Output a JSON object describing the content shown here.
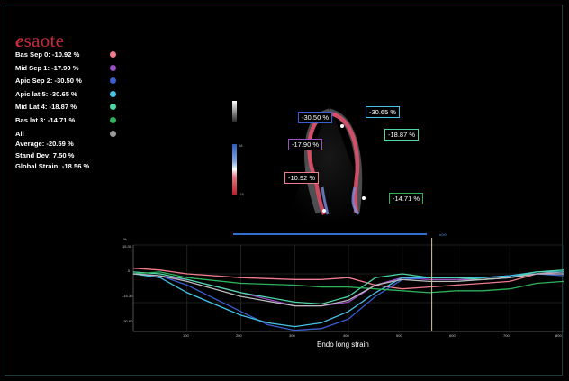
{
  "logo": {
    "e": "e",
    "rest": "saote"
  },
  "legend": [
    {
      "label": "Bas Sep 0: -10.92 %",
      "color": "#f07b8c"
    },
    {
      "label": "Mid Sep 1: -17.90 %",
      "color": "#9b4fc7"
    },
    {
      "label": "Apic Sep 2: -30.50 %",
      "color": "#3a5fd0"
    },
    {
      "label": "Apic lat 5: -30.65 %",
      "color": "#46c2e8"
    },
    {
      "label": "Mid Lat 4: -18.87 %",
      "color": "#4cd6a8"
    },
    {
      "label": "Bas lat 3: -14.71 %",
      "color": "#2db35a"
    },
    {
      "label": "All",
      "color": "#9a9a9a"
    }
  ],
  "stats": {
    "average": "Average: -20.59 %",
    "std": "Stand Dev: 7.50 %",
    "global": "Global Strain: -18.56 %"
  },
  "tags": {
    "apic_sep": "-30.50 %",
    "apic_lat": "-30.65 %",
    "mid_sep": "-17.90 %",
    "mid_lat": "-18.87 %",
    "bas_sep": "-10.92 %",
    "bas_lat": "-14.71 %"
  },
  "colorbar": {
    "top": "18",
    "bottom": "-18"
  },
  "plot": {
    "unit": "%",
    "xlabel": "Endo long strain",
    "yticks": [
      "15.30",
      "0",
      "-15.30",
      "-30.60"
    ],
    "xticks": [
      "100",
      "200",
      "300",
      "400",
      "500",
      "600",
      "700",
      "800"
    ],
    "corner": "n0/0"
  },
  "chart_data": {
    "type": "line",
    "xlabel": "Endo long strain",
    "ylabel": "%",
    "ylim": [
      -30.6,
      15.3
    ],
    "xlim": [
      0,
      800
    ],
    "series": [
      {
        "name": "Bas Sep 0",
        "color": "#f07b8c",
        "x": [
          0,
          50,
          100,
          200,
          300,
          350,
          400,
          450,
          500,
          550,
          600,
          650,
          700,
          750,
          800
        ],
        "y": [
          3,
          2,
          0,
          -2,
          -3,
          -3,
          -2,
          -6,
          -8,
          -7,
          -6,
          -5,
          -4,
          0,
          1
        ]
      },
      {
        "name": "Mid Sep 1",
        "color": "#9b4fc7",
        "x": [
          0,
          50,
          100,
          200,
          300,
          350,
          400,
          450,
          500,
          550,
          600,
          650,
          700,
          750,
          800
        ],
        "y": [
          0,
          -1,
          -3,
          -10,
          -17,
          -17,
          -15,
          -6,
          -2,
          -3,
          -3,
          -3,
          -2,
          0,
          0
        ]
      },
      {
        "name": "Apic Sep 2",
        "color": "#3a5fd0",
        "x": [
          0,
          50,
          100,
          200,
          250,
          300,
          350,
          400,
          450,
          500,
          550,
          600,
          650,
          700,
          750,
          800
        ],
        "y": [
          0,
          -1,
          -6,
          -20,
          -27,
          -30,
          -29,
          -24,
          -12,
          -3,
          -2,
          -2,
          -2,
          -1,
          0,
          -1
        ]
      },
      {
        "name": "Apic lat 5",
        "color": "#46c2e8",
        "x": [
          0,
          50,
          100,
          200,
          250,
          300,
          350,
          400,
          450,
          500,
          550,
          600,
          650,
          700,
          750,
          800
        ],
        "y": [
          0,
          -2,
          -10,
          -22,
          -26,
          -28,
          -26,
          -20,
          -10,
          -2,
          -2,
          -2,
          -2,
          -1,
          1,
          1
        ]
      },
      {
        "name": "Mid Lat 4",
        "color": "#4cd6a8",
        "x": [
          0,
          50,
          100,
          200,
          300,
          350,
          400,
          450,
          500,
          550,
          600,
          650,
          700,
          750,
          800
        ],
        "y": [
          1,
          0,
          -3,
          -10,
          -15,
          -16,
          -12,
          -2,
          0,
          -2,
          -2,
          -3,
          -2,
          1,
          2
        ]
      },
      {
        "name": "Bas lat 3",
        "color": "#2db35a",
        "x": [
          0,
          50,
          100,
          200,
          300,
          350,
          400,
          450,
          500,
          550,
          600,
          650,
          700,
          750,
          800
        ],
        "y": [
          0,
          1,
          -2,
          -5,
          -6,
          -7,
          -7,
          -8,
          -9,
          -10,
          -9,
          -9,
          -8,
          -5,
          -4
        ]
      },
      {
        "name": "All",
        "color": "#bbbbbb",
        "x": [
          0,
          50,
          100,
          200,
          300,
          350,
          400,
          450,
          500,
          550,
          600,
          650,
          700,
          750,
          800
        ],
        "y": [
          0,
          -1,
          -4,
          -12,
          -17,
          -17,
          -14,
          -6,
          -3,
          -4,
          -4,
          -3,
          -2,
          0,
          0
        ]
      }
    ],
    "cursor_x": 555
  }
}
